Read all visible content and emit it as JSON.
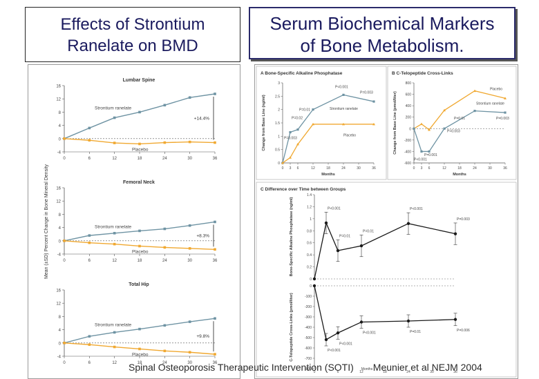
{
  "slide": {
    "title_left_line1": "Effects of Strontium",
    "title_left_line2": "Ranelate on BMD",
    "title_right_line1": "Serum Biochemical Markers",
    "title_right_line2": "of Bone Metabolism.",
    "footer_left": "Spinal Osteoporosis Therapeutic Intervention (SOTI)",
    "footer_right": "Meunier et al NEJM 2004"
  },
  "colors": {
    "treatment": "#6e93a3",
    "placebo": "#f0a830",
    "black": "#1a1a1a"
  },
  "chart_data": [
    {
      "type": "line",
      "panel": "left",
      "ylabel": "Mean (±SD) Percent Change in Bone Mineral Density",
      "x": [
        0,
        6,
        12,
        18,
        24,
        30,
        36
      ],
      "subplots": [
        {
          "title": "Lumbar Spine",
          "ylim": [
            -4,
            16
          ],
          "yticks": [
            -4,
            0,
            4,
            8,
            12,
            16
          ],
          "annotation": "+14.4%",
          "series": [
            {
              "name": "Strontium ranelate",
              "values": [
                0,
                3.2,
                6.3,
                8.0,
                10.1,
                12.4,
                13.5
              ]
            },
            {
              "name": "Placebo",
              "values": [
                0,
                -0.5,
                -1.3,
                -1.6,
                -1.2,
                -1.0,
                -1.2
              ]
            }
          ]
        },
        {
          "title": "Femoral Neck",
          "ylim": [
            -4,
            16
          ],
          "yticks": [
            -4,
            0,
            4,
            8,
            12,
            16
          ],
          "annotation": "+8.3%",
          "series": [
            {
              "name": "Strontium ranelate",
              "values": [
                0,
                1.6,
                2.3,
                3.0,
                3.6,
                4.6,
                5.7
              ]
            },
            {
              "name": "Placebo",
              "values": [
                0,
                -0.6,
                -1.0,
                -1.6,
                -2.0,
                -2.3,
                -2.6
              ]
            }
          ]
        },
        {
          "title": "Total Hip",
          "ylim": [
            -4,
            16
          ],
          "yticks": [
            -4,
            0,
            4,
            8,
            12,
            16
          ],
          "annotation": "+9.8%",
          "series": [
            {
              "name": "Strontium ranelate",
              "values": [
                0,
                2.0,
                3.2,
                4.2,
                5.3,
                6.4,
                7.4
              ]
            },
            {
              "name": "Placebo",
              "values": [
                0,
                -0.5,
                -1.2,
                -1.8,
                -2.4,
                -2.8,
                -3.4
              ]
            }
          ]
        }
      ]
    },
    {
      "type": "line",
      "panel": "A",
      "title": "A  Bone-Specific Alkaline Phosphatase",
      "ylabel": "Change from Base Line (ng/ml)",
      "xlabel": "Months",
      "x": [
        0,
        3,
        6,
        12,
        24,
        36
      ],
      "ylim": [
        0,
        3.0
      ],
      "yticks": [
        0.0,
        0.5,
        1.0,
        1.5,
        2.0,
        2.5,
        3.0
      ],
      "xticks": [
        0,
        3,
        6,
        12,
        18,
        24,
        30,
        36
      ],
      "series": [
        {
          "name": "Strontium ranelate",
          "values": [
            0,
            1.15,
            1.25,
            2.0,
            2.55,
            2.3
          ]
        },
        {
          "name": "Placebo",
          "values": [
            0,
            0.2,
            0.7,
            1.45,
            1.45,
            1.45
          ]
        }
      ],
      "annotations": [
        "P<0.001",
        "P=0.003",
        "P=0.01",
        "P=0.02",
        "P=0.003",
        "Strontium ranelate",
        "Placebo"
      ]
    },
    {
      "type": "line",
      "panel": "B",
      "title": "B  C-Telopeptide Cross-Links",
      "ylabel": "Change from Base Line (pmol/liter)",
      "xlabel": "Months",
      "x": [
        0,
        3,
        6,
        12,
        24,
        36
      ],
      "ylim": [
        -600,
        800
      ],
      "yticks": [
        -600,
        -400,
        -200,
        0,
        200,
        400,
        600,
        800
      ],
      "xticks": [
        0,
        3,
        6,
        12,
        18,
        24,
        30,
        36
      ],
      "series": [
        {
          "name": "Placebo",
          "values": [
            0,
            80,
            -20,
            320,
            660,
            530
          ]
        },
        {
          "name": "Strontium ranelate",
          "values": [
            0,
            -400,
            -400,
            0,
            310,
            280
          ]
        }
      ],
      "annotations": [
        "Placebo",
        "Strontium ranelate",
        "P=0.01",
        "P=0.003",
        "P=0.003",
        "P=0.001",
        "P<0.001"
      ]
    },
    {
      "type": "line",
      "panel": "C",
      "title": "C  Difference over Time between Groups",
      "xlabel": "Months",
      "x": [
        0,
        3,
        6,
        12,
        24,
        36
      ],
      "xticks": [
        0,
        6,
        12,
        18,
        24,
        30,
        36
      ],
      "subplots": [
        {
          "ylabel": "Bone-Specific Alkaline Phosphatase (ng/ml)",
          "ylim": [
            0,
            1.4
          ],
          "yticks": [
            0.0,
            0.2,
            0.4,
            0.6,
            0.8,
            1.0,
            1.2,
            1.4
          ],
          "series": [
            {
              "name": "Difference",
              "values": [
                0,
                0.93,
                0.47,
                0.55,
                0.92,
                0.75
              ]
            }
          ],
          "annotations": [
            "P<0.001",
            "P=0.01",
            "P=0.01",
            "P<0.001",
            "P=0.003"
          ]
        },
        {
          "ylabel": "C-Telopeptide Cross-Links (pmol/liter)",
          "ylim": [
            -800,
            0
          ],
          "yticks": [
            -800,
            -700,
            -600,
            -500,
            -400,
            -300,
            -200,
            -100,
            0
          ],
          "series": [
            {
              "name": "Difference",
              "values": [
                0,
                -520,
                -455,
                -350,
                -340,
                -325
              ]
            }
          ],
          "annotations": [
            "P<0.001",
            "P<0.001",
            "P<0.001",
            "P=0.01",
            "P=0.006"
          ]
        }
      ]
    }
  ]
}
